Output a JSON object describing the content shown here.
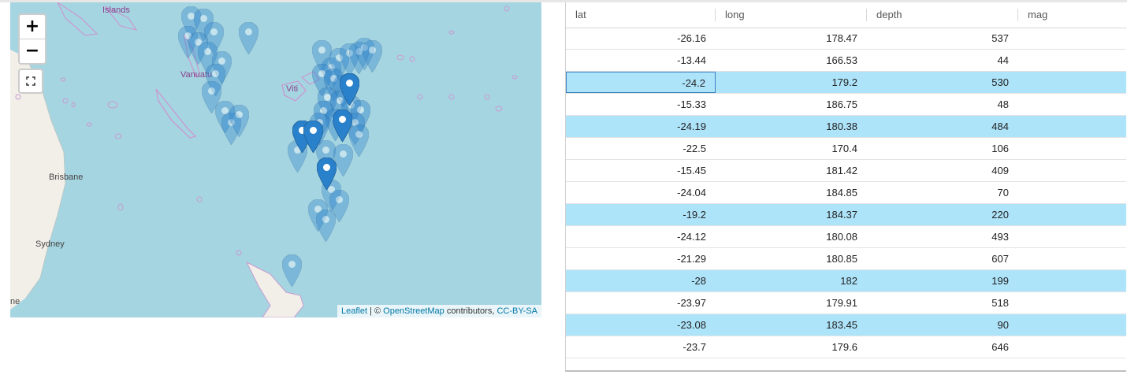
{
  "map": {
    "zoom_in_label": "+",
    "zoom_out_label": "−",
    "attribution": {
      "leaflet": "Leaflet",
      "sep1": " | © ",
      "osm": "OpenStreetMap",
      "mid": " contributors, ",
      "license": "CC-BY-SA"
    },
    "cities": [
      "Brisbane",
      "Sydney"
    ],
    "places": [
      "Islands",
      "Vanuatu",
      "Viti"
    ],
    "edge_text": "ne",
    "colors": {
      "water": "#a6d5e2",
      "land": "#f2efe9",
      "border": "#c79bd0",
      "marker": "#2a81cb"
    }
  },
  "table": {
    "columns": [
      "lat",
      "long",
      "depth",
      "mag"
    ],
    "rows": [
      {
        "lat": "-26.16",
        "long": "178.47",
        "depth": "537",
        "highlight": false
      },
      {
        "lat": "-13.44",
        "long": "166.53",
        "depth": "44",
        "highlight": false
      },
      {
        "lat": "-24.2",
        "long": "179.2",
        "depth": "530",
        "highlight": true,
        "selected": true
      },
      {
        "lat": "-15.33",
        "long": "186.75",
        "depth": "48",
        "highlight": false
      },
      {
        "lat": "-24.19",
        "long": "180.38",
        "depth": "484",
        "highlight": true
      },
      {
        "lat": "-22.5",
        "long": "170.4",
        "depth": "106",
        "highlight": false
      },
      {
        "lat": "-15.45",
        "long": "181.42",
        "depth": "409",
        "highlight": false
      },
      {
        "lat": "-24.04",
        "long": "184.85",
        "depth": "70",
        "highlight": false
      },
      {
        "lat": "-19.2",
        "long": "184.37",
        "depth": "220",
        "highlight": true
      },
      {
        "lat": "-24.12",
        "long": "180.08",
        "depth": "493",
        "highlight": false
      },
      {
        "lat": "-21.29",
        "long": "180.85",
        "depth": "607",
        "highlight": false
      },
      {
        "lat": "-28",
        "long": "182",
        "depth": "199",
        "highlight": true
      },
      {
        "lat": "-23.97",
        "long": "179.91",
        "depth": "518",
        "highlight": false
      },
      {
        "lat": "-23.08",
        "long": "183.45",
        "depth": "90",
        "highlight": true
      },
      {
        "lat": "-23.7",
        "long": "179.6",
        "depth": "646",
        "highlight": false
      }
    ],
    "colors": {
      "highlight": "#aee4fa",
      "selected_border": "#3a7fc1"
    }
  }
}
